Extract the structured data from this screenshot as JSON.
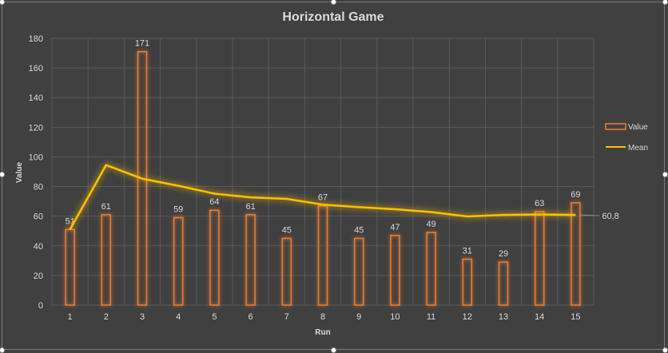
{
  "chart_data": {
    "type": "bar",
    "title": "Horizontal Game",
    "xlabel": "Run",
    "ylabel": "Value",
    "ylim": [
      0,
      180
    ],
    "yticks": [
      "0",
      "20",
      "40",
      "60",
      "80",
      "100",
      "120",
      "140",
      "160",
      "180"
    ],
    "categories": [
      "1",
      "2",
      "3",
      "4",
      "5",
      "6",
      "7",
      "8",
      "9",
      "10",
      "11",
      "12",
      "13",
      "14",
      "15"
    ],
    "series": [
      {
        "name": "Value",
        "kind": "bar",
        "values": [
          51,
          61,
          171,
          59,
          64,
          61,
          45,
          67,
          45,
          47,
          49,
          31,
          29,
          63,
          69
        ],
        "labels": [
          "51",
          "61",
          "171",
          "59",
          "64",
          "61",
          "45",
          "67",
          "45",
          "47",
          "49",
          "31",
          "29",
          "63",
          "69"
        ],
        "color": "#ed7d31"
      },
      {
        "name": "Mean",
        "kind": "line",
        "values": [
          51,
          94.5,
          85.3,
          80.5,
          75.2,
          72.7,
          71.7,
          67.8,
          66.1,
          64.7,
          62.8,
          59.8,
          60.8,
          61.2,
          60.8
        ],
        "end_label": "60,8",
        "color": "#ffc000"
      }
    ],
    "grid": true,
    "legend": "right"
  },
  "colors": {
    "background": "#404040",
    "text": "#d9d9d9",
    "grid": "#595959",
    "bar": "#ed7d31",
    "line": "#ffc000"
  }
}
